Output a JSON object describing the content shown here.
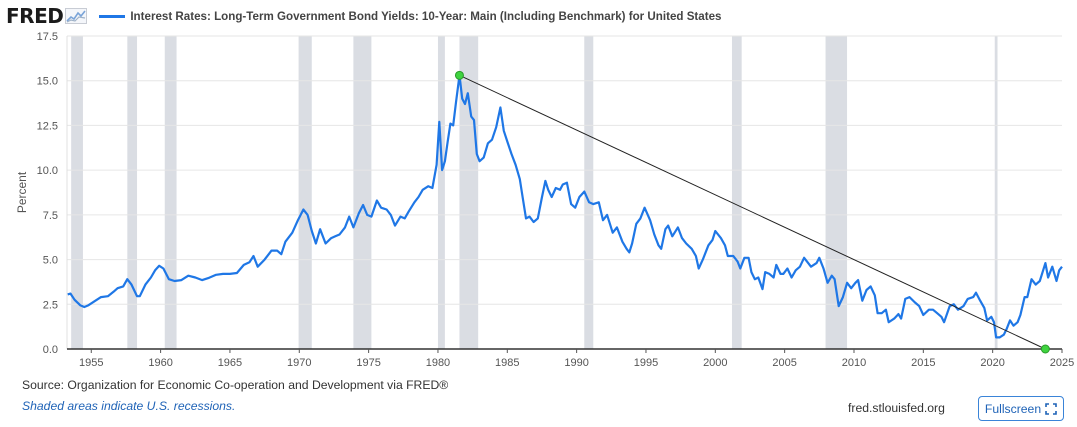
{
  "brand": {
    "logo_text": "FRED"
  },
  "colors": {
    "series": "#1f77e6",
    "recession": "#dadde3",
    "trend": "#222222",
    "marker": "#3fd33f",
    "grid": "#e6e6e6",
    "accent": "#1f63b7"
  },
  "footer": {
    "source": "Source: Organization for Economic Co-operation and Development via FRED®",
    "note": "Shaded areas indicate U.S. recessions.",
    "site": "fred.stlouisfed.org",
    "fullscreen_label": "Fullscreen",
    "fullscreen_icon": "expand-icon"
  },
  "chart_data": {
    "type": "line",
    "title": "",
    "xlabel": "",
    "ylabel": "Percent",
    "xlim": [
      1953.25,
      2025.0
    ],
    "ylim": [
      0,
      17.5
    ],
    "grid": true,
    "legend_position": "top-left",
    "yticks": [
      0,
      2.5,
      5,
      7.5,
      10,
      12.5,
      15,
      17.5
    ],
    "ytick_labels": [
      "0.0",
      "2.5",
      "5.0",
      "7.5",
      "10.0",
      "12.5",
      "15.0",
      "17.5"
    ],
    "xticks": [
      1955,
      1960,
      1965,
      1970,
      1975,
      1980,
      1985,
      1990,
      1995,
      2000,
      2005,
      2010,
      2015,
      2020,
      2025
    ],
    "xtick_labels": [
      "1955",
      "1960",
      "1965",
      "1970",
      "1975",
      "1980",
      "1985",
      "1990",
      "1995",
      "2000",
      "2005",
      "2010",
      "2015",
      "2020",
      "2025"
    ],
    "recessions": [
      [
        1953.55,
        1954.4
      ],
      [
        1957.6,
        1958.3
      ],
      [
        1960.3,
        1961.15
      ],
      [
        1969.95,
        1970.9
      ],
      [
        1973.9,
        1975.2
      ],
      [
        1980.0,
        1980.5
      ],
      [
        1981.55,
        1982.9
      ],
      [
        1990.55,
        1991.2
      ],
      [
        2001.2,
        2001.9
      ],
      [
        2007.95,
        2009.5
      ],
      [
        2020.15,
        2020.35
      ]
    ],
    "series": [
      {
        "name": "Interest Rates: Long-Term Government Bond Yields: 10-Year: Main (Including Benchmark) for United States",
        "points": [
          [
            1953.3,
            3.05
          ],
          [
            1953.5,
            3.1
          ],
          [
            1953.8,
            2.75
          ],
          [
            1954.2,
            2.45
          ],
          [
            1954.5,
            2.35
          ],
          [
            1954.8,
            2.45
          ],
          [
            1955.3,
            2.7
          ],
          [
            1955.7,
            2.9
          ],
          [
            1956.2,
            2.95
          ],
          [
            1956.6,
            3.2
          ],
          [
            1956.9,
            3.4
          ],
          [
            1957.3,
            3.5
          ],
          [
            1957.6,
            3.9
          ],
          [
            1957.9,
            3.6
          ],
          [
            1958.3,
            2.95
          ],
          [
            1958.5,
            2.95
          ],
          [
            1958.9,
            3.6
          ],
          [
            1959.3,
            4.0
          ],
          [
            1959.6,
            4.4
          ],
          [
            1959.9,
            4.65
          ],
          [
            1960.2,
            4.5
          ],
          [
            1960.6,
            3.9
          ],
          [
            1961.0,
            3.8
          ],
          [
            1961.5,
            3.85
          ],
          [
            1962.0,
            4.1
          ],
          [
            1962.5,
            4.0
          ],
          [
            1963.0,
            3.85
          ],
          [
            1963.5,
            3.98
          ],
          [
            1964.0,
            4.15
          ],
          [
            1964.5,
            4.2
          ],
          [
            1965.0,
            4.2
          ],
          [
            1965.5,
            4.25
          ],
          [
            1966.0,
            4.7
          ],
          [
            1966.4,
            4.85
          ],
          [
            1966.7,
            5.2
          ],
          [
            1967.0,
            4.6
          ],
          [
            1967.5,
            5.0
          ],
          [
            1968.0,
            5.5
          ],
          [
            1968.4,
            5.5
          ],
          [
            1968.7,
            5.3
          ],
          [
            1969.0,
            6.0
          ],
          [
            1969.5,
            6.5
          ],
          [
            1969.9,
            7.2
          ],
          [
            1970.3,
            7.8
          ],
          [
            1970.6,
            7.5
          ],
          [
            1970.9,
            6.6
          ],
          [
            1971.2,
            5.9
          ],
          [
            1971.5,
            6.7
          ],
          [
            1971.9,
            5.9
          ],
          [
            1972.3,
            6.2
          ],
          [
            1972.6,
            6.3
          ],
          [
            1972.9,
            6.4
          ],
          [
            1973.3,
            6.8
          ],
          [
            1973.6,
            7.4
          ],
          [
            1973.9,
            6.8
          ],
          [
            1974.3,
            7.6
          ],
          [
            1974.6,
            8.05
          ],
          [
            1974.9,
            7.5
          ],
          [
            1975.2,
            7.4
          ],
          [
            1975.6,
            8.3
          ],
          [
            1975.9,
            7.9
          ],
          [
            1976.3,
            7.8
          ],
          [
            1976.6,
            7.5
          ],
          [
            1976.9,
            6.9
          ],
          [
            1977.3,
            7.4
          ],
          [
            1977.6,
            7.3
          ],
          [
            1977.9,
            7.7
          ],
          [
            1978.3,
            8.2
          ],
          [
            1978.6,
            8.5
          ],
          [
            1978.9,
            8.9
          ],
          [
            1979.3,
            9.1
          ],
          [
            1979.6,
            9.0
          ],
          [
            1979.9,
            10.3
          ],
          [
            1980.1,
            12.7
          ],
          [
            1980.3,
            10.0
          ],
          [
            1980.5,
            10.5
          ],
          [
            1980.7,
            11.6
          ],
          [
            1980.9,
            12.6
          ],
          [
            1981.1,
            12.5
          ],
          [
            1981.3,
            13.8
          ],
          [
            1981.55,
            15.3
          ],
          [
            1981.75,
            14.0
          ],
          [
            1981.95,
            13.7
          ],
          [
            1982.15,
            14.3
          ],
          [
            1982.4,
            13.0
          ],
          [
            1982.6,
            12.8
          ],
          [
            1982.8,
            10.9
          ],
          [
            1983.0,
            10.5
          ],
          [
            1983.3,
            10.7
          ],
          [
            1983.6,
            11.5
          ],
          [
            1983.9,
            11.7
          ],
          [
            1984.2,
            12.4
          ],
          [
            1984.5,
            13.5
          ],
          [
            1984.75,
            12.2
          ],
          [
            1985.0,
            11.6
          ],
          [
            1985.3,
            10.9
          ],
          [
            1985.6,
            10.3
          ],
          [
            1985.9,
            9.5
          ],
          [
            1986.1,
            8.5
          ],
          [
            1986.35,
            7.3
          ],
          [
            1986.6,
            7.4
          ],
          [
            1986.9,
            7.1
          ],
          [
            1987.2,
            7.3
          ],
          [
            1987.5,
            8.5
          ],
          [
            1987.75,
            9.4
          ],
          [
            1987.95,
            8.9
          ],
          [
            1988.2,
            8.5
          ],
          [
            1988.5,
            9.0
          ],
          [
            1988.8,
            8.9
          ],
          [
            1989.0,
            9.2
          ],
          [
            1989.3,
            9.3
          ],
          [
            1989.6,
            8.1
          ],
          [
            1989.9,
            7.9
          ],
          [
            1990.2,
            8.5
          ],
          [
            1990.55,
            8.8
          ],
          [
            1990.9,
            8.2
          ],
          [
            1991.2,
            8.1
          ],
          [
            1991.6,
            8.2
          ],
          [
            1991.9,
            7.2
          ],
          [
            1992.2,
            7.5
          ],
          [
            1992.6,
            6.5
          ],
          [
            1992.9,
            6.8
          ],
          [
            1993.3,
            6.0
          ],
          [
            1993.6,
            5.6
          ],
          [
            1993.8,
            5.4
          ],
          [
            1994.0,
            5.9
          ],
          [
            1994.3,
            7.0
          ],
          [
            1994.6,
            7.3
          ],
          [
            1994.9,
            7.9
          ],
          [
            1995.3,
            7.2
          ],
          [
            1995.6,
            6.4
          ],
          [
            1995.9,
            5.8
          ],
          [
            1996.1,
            5.6
          ],
          [
            1996.4,
            6.7
          ],
          [
            1996.6,
            6.9
          ],
          [
            1996.9,
            6.3
          ],
          [
            1997.3,
            6.8
          ],
          [
            1997.6,
            6.2
          ],
          [
            1997.9,
            5.9
          ],
          [
            1998.3,
            5.6
          ],
          [
            1998.6,
            5.2
          ],
          [
            1998.8,
            4.5
          ],
          [
            1999.1,
            5.0
          ],
          [
            1999.5,
            5.8
          ],
          [
            1999.8,
            6.1
          ],
          [
            2000.0,
            6.6
          ],
          [
            2000.4,
            6.2
          ],
          [
            2000.7,
            5.8
          ],
          [
            2000.9,
            5.2
          ],
          [
            2001.3,
            5.2
          ],
          [
            2001.6,
            4.9
          ],
          [
            2001.8,
            4.5
          ],
          [
            2002.1,
            5.1
          ],
          [
            2002.4,
            5.1
          ],
          [
            2002.6,
            4.3
          ],
          [
            2002.85,
            3.9
          ],
          [
            2003.1,
            4.0
          ],
          [
            2003.4,
            3.35
          ],
          [
            2003.6,
            4.3
          ],
          [
            2003.9,
            4.2
          ],
          [
            2004.2,
            4.0
          ],
          [
            2004.4,
            4.7
          ],
          [
            2004.7,
            4.2
          ],
          [
            2004.9,
            4.2
          ],
          [
            2005.2,
            4.5
          ],
          [
            2005.5,
            4.0
          ],
          [
            2005.8,
            4.4
          ],
          [
            2006.1,
            4.6
          ],
          [
            2006.4,
            5.1
          ],
          [
            2006.7,
            4.8
          ],
          [
            2006.9,
            4.6
          ],
          [
            2007.3,
            4.8
          ],
          [
            2007.5,
            5.1
          ],
          [
            2007.8,
            4.5
          ],
          [
            2008.1,
            3.7
          ],
          [
            2008.4,
            4.1
          ],
          [
            2008.6,
            3.9
          ],
          [
            2008.9,
            2.4
          ],
          [
            2009.2,
            2.9
          ],
          [
            2009.5,
            3.7
          ],
          [
            2009.8,
            3.4
          ],
          [
            2010.1,
            3.7
          ],
          [
            2010.3,
            3.85
          ],
          [
            2010.6,
            2.7
          ],
          [
            2010.9,
            3.3
          ],
          [
            2011.2,
            3.5
          ],
          [
            2011.5,
            3.0
          ],
          [
            2011.7,
            2.0
          ],
          [
            2012.0,
            2.0
          ],
          [
            2012.3,
            2.2
          ],
          [
            2012.5,
            1.5
          ],
          [
            2012.9,
            1.7
          ],
          [
            2013.2,
            1.95
          ],
          [
            2013.4,
            1.7
          ],
          [
            2013.7,
            2.8
          ],
          [
            2014.0,
            2.9
          ],
          [
            2014.4,
            2.6
          ],
          [
            2014.7,
            2.4
          ],
          [
            2015.0,
            1.9
          ],
          [
            2015.4,
            2.2
          ],
          [
            2015.7,
            2.2
          ],
          [
            2016.0,
            2.0
          ],
          [
            2016.3,
            1.8
          ],
          [
            2016.5,
            1.5
          ],
          [
            2016.9,
            2.4
          ],
          [
            2017.2,
            2.5
          ],
          [
            2017.5,
            2.2
          ],
          [
            2017.9,
            2.4
          ],
          [
            2018.2,
            2.8
          ],
          [
            2018.6,
            2.9
          ],
          [
            2018.8,
            3.15
          ],
          [
            2019.1,
            2.7
          ],
          [
            2019.4,
            2.3
          ],
          [
            2019.6,
            1.6
          ],
          [
            2019.9,
            1.8
          ],
          [
            2020.1,
            1.5
          ],
          [
            2020.25,
            0.65
          ],
          [
            2020.5,
            0.65
          ],
          [
            2020.8,
            0.8
          ],
          [
            2021.0,
            1.1
          ],
          [
            2021.25,
            1.6
          ],
          [
            2021.5,
            1.3
          ],
          [
            2021.8,
            1.5
          ],
          [
            2022.0,
            1.9
          ],
          [
            2022.3,
            2.9
          ],
          [
            2022.5,
            2.9
          ],
          [
            2022.8,
            3.9
          ],
          [
            2023.1,
            3.6
          ],
          [
            2023.4,
            3.8
          ],
          [
            2023.6,
            4.3
          ],
          [
            2023.8,
            4.8
          ],
          [
            2024.0,
            4.0
          ],
          [
            2024.3,
            4.6
          ],
          [
            2024.6,
            3.8
          ],
          [
            2024.8,
            4.4
          ],
          [
            2025.0,
            4.6
          ]
        ]
      }
    ],
    "trendline": {
      "start": [
        1981.55,
        15.3
      ],
      "end": [
        2023.8,
        0.0
      ]
    }
  }
}
